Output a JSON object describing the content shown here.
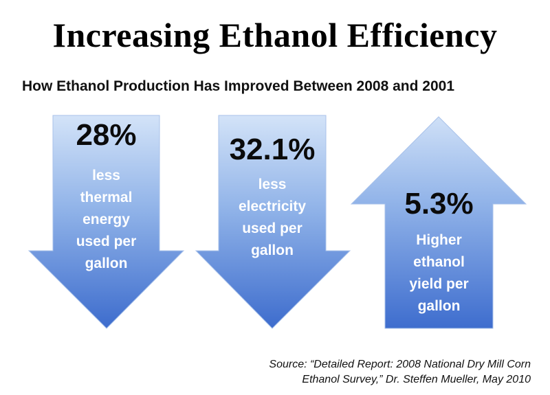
{
  "title": "Increasing Ethanol Efficiency",
  "subtitle": "How Ethanol Production Has Improved Between 2008 and 2001",
  "arrows": [
    {
      "direction": "down",
      "percent": "28%",
      "lines": [
        "less",
        "thermal",
        "energy",
        "used per",
        "gallon"
      ]
    },
    {
      "direction": "down",
      "percent": "32.1%",
      "lines": [
        "less",
        "electricity",
        "used per",
        "gallon"
      ]
    },
    {
      "direction": "up",
      "percent": "5.3%",
      "lines": [
        "Higher",
        "ethanol",
        "yield per",
        "gallon"
      ]
    }
  ],
  "source": {
    "line1": "Source: “Detailed Report: 2008 National Dry Mill Corn",
    "line2": "Ethanol Survey,” Dr. Steffen Mueller, May 2010"
  },
  "colors": {
    "arrow_light": "#cfe0f7",
    "arrow_dark": "#3f6fcf",
    "percent_text": "#0b0b0b",
    "label_text": "#ffffff"
  }
}
